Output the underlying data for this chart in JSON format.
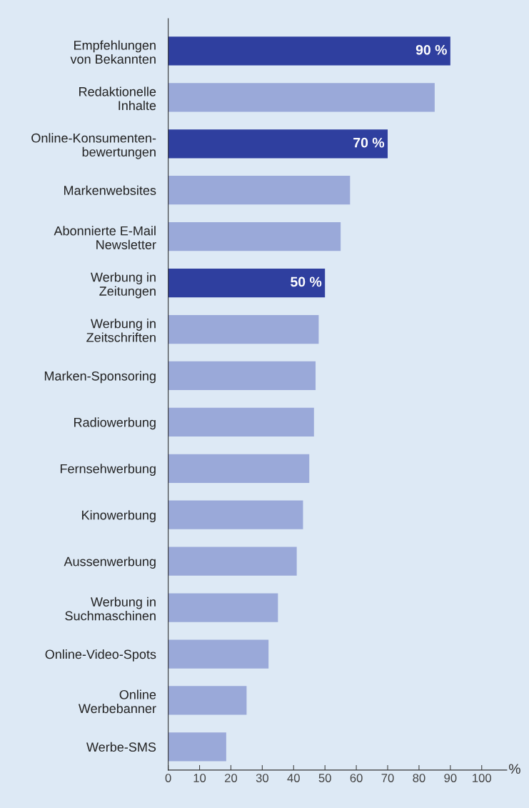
{
  "chart_data": {
    "type": "bar",
    "orientation": "horizontal",
    "xlabel": "%",
    "categories": [
      "Empfehlungen\nvon Bekannten",
      "Redaktionelle\nInhalte",
      "Online-Konsumenten-\nbewertungen",
      "Markenwebsites",
      "Abonnierte E-Mail\nNewsletter",
      "Werbung in\nZeitungen",
      "Werbung in\nZeitschriften",
      "Marken-Sponsoring",
      "Radiowerbung",
      "Fernsehwerbung",
      "Kinowerbung",
      "Aussenwerbung",
      "Werbung in\nSuchmaschinen",
      "Online-Video-Spots",
      "Online\nWerbebanner",
      "Werbe-SMS"
    ],
    "values": [
      90,
      85,
      70,
      58,
      55,
      50,
      48,
      47,
      46.5,
      45,
      43,
      41,
      35,
      32,
      25,
      18.5
    ],
    "colors": [
      "#2f3f9f",
      "#9aa9d9",
      "#2f3f9f",
      "#9aa9d9",
      "#9aa9d9",
      "#2f3f9f",
      "#9aa9d9",
      "#9aa9d9",
      "#9aa9d9",
      "#9aa9d9",
      "#9aa9d9",
      "#9aa9d9",
      "#9aa9d9",
      "#9aa9d9",
      "#9aa9d9",
      "#9aa9d9"
    ],
    "value_labels": [
      "90 %",
      null,
      "70 %",
      null,
      null,
      "50 %",
      null,
      null,
      null,
      null,
      null,
      null,
      null,
      null,
      null,
      null
    ],
    "xlim": [
      0,
      108
    ],
    "xticks": [
      0,
      10,
      20,
      30,
      40,
      50,
      60,
      70,
      80,
      90,
      100
    ],
    "grid": false
  }
}
